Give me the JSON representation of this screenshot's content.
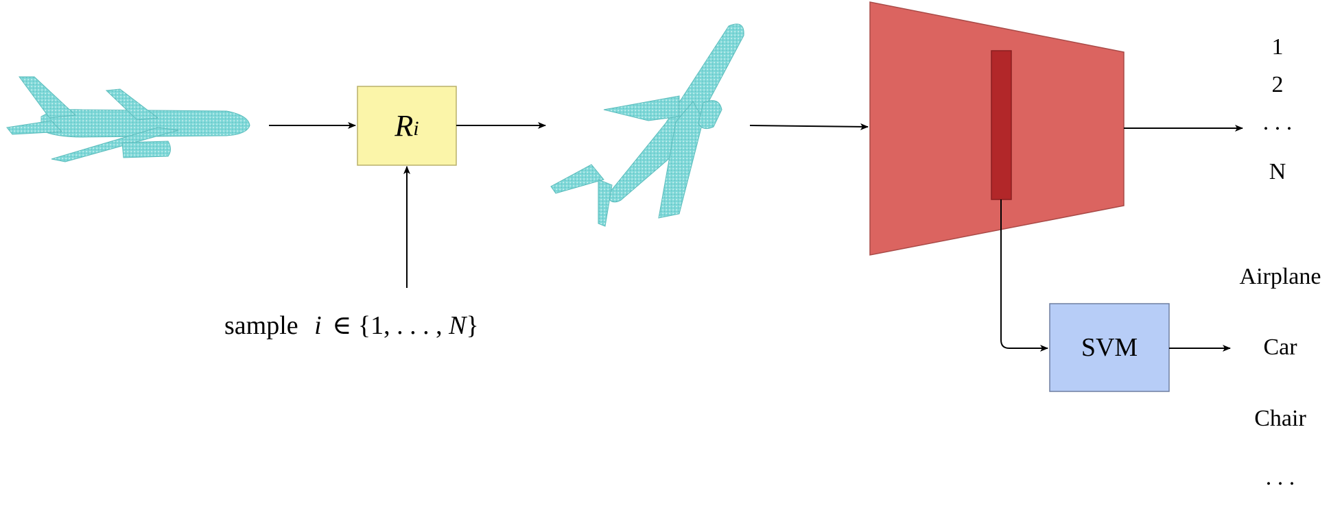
{
  "rotation_box": {
    "symbol": "R",
    "subscript": "i"
  },
  "sample_label": {
    "word": "sample",
    "index": "i",
    "set_open": "∈ {1, . . . ,",
    "set_var": "N",
    "set_close": "}"
  },
  "classifier_box": {
    "label": "SVM"
  },
  "rotation_outputs": [
    "1",
    "2",
    ". . .",
    "N"
  ],
  "class_outputs": [
    "Airplane",
    "Car",
    "Chair",
    ". . ."
  ],
  "colors": {
    "rotation_box_fill": "#fbf5a9",
    "rotation_box_stroke": "#b9b06a",
    "network_fill": "#db6460",
    "network_stroke": "#a84a47",
    "feature_fill": "#b22729",
    "svm_fill": "#b7cdf7",
    "svm_stroke": "#6e7fa0",
    "point_cloud": "#6ecfcf"
  }
}
